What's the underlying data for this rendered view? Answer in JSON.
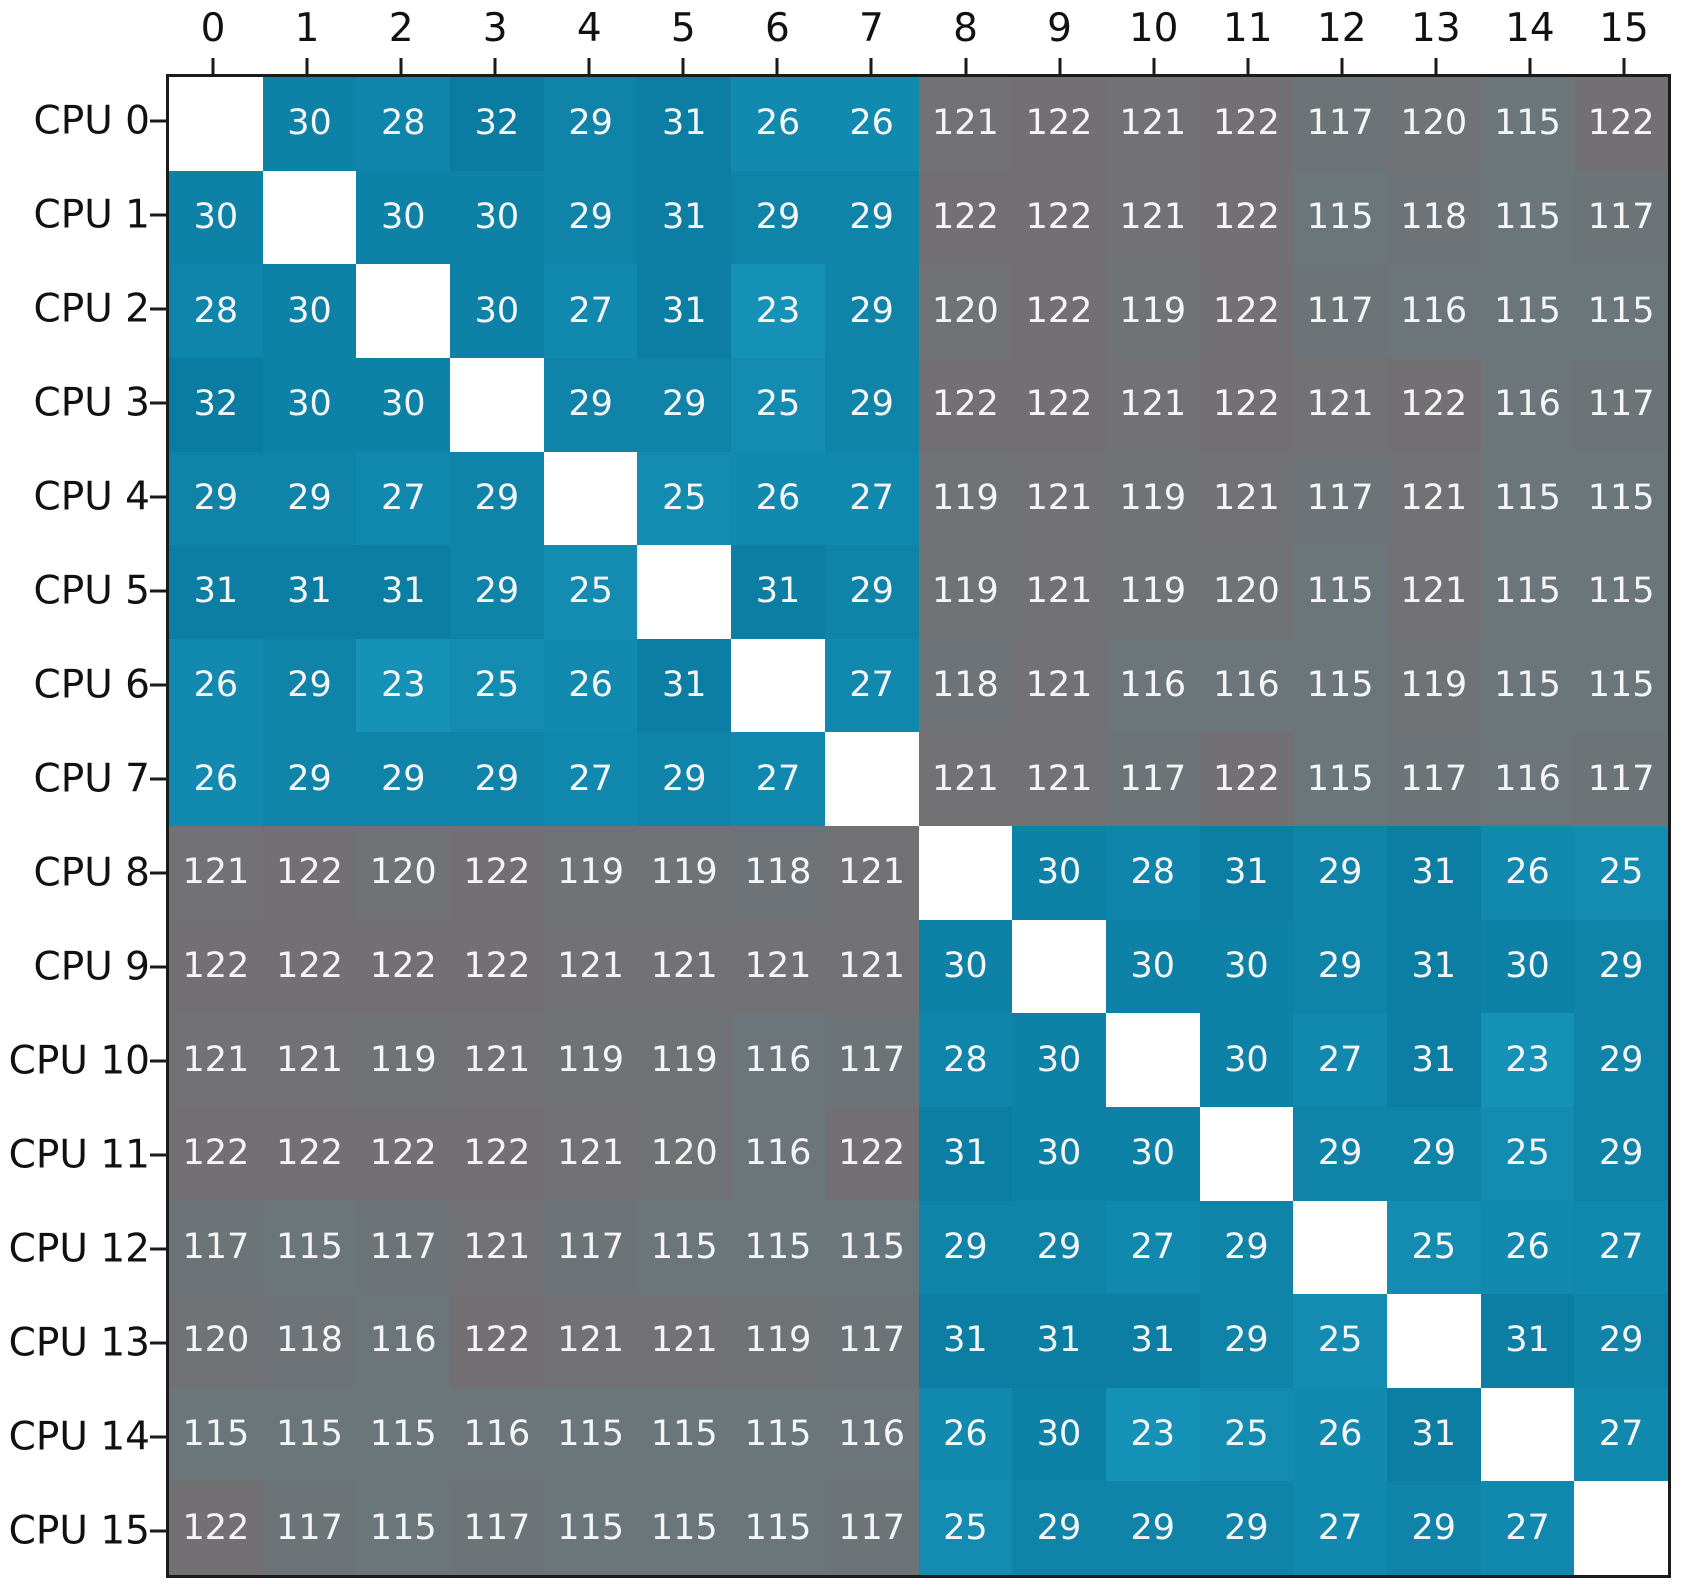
{
  "chart_data": {
    "type": "heatmap",
    "title": "",
    "xlabel": "",
    "ylabel": "",
    "x_tick_labels": [
      "0",
      "1",
      "2",
      "3",
      "4",
      "5",
      "6",
      "7",
      "8",
      "9",
      "10",
      "11",
      "12",
      "13",
      "14",
      "15"
    ],
    "y_tick_labels": [
      "CPU 0",
      "CPU 1",
      "CPU 2",
      "CPU 3",
      "CPU 4",
      "CPU 5",
      "CPU 6",
      "CPU 7",
      "CPU 8",
      "CPU 9",
      "CPU 10",
      "CPU 11",
      "CPU 12",
      "CPU 13",
      "CPU 14",
      "CPU 15"
    ],
    "values": [
      [
        null,
        30,
        28,
        32,
        29,
        31,
        26,
        26,
        121,
        122,
        121,
        122,
        117,
        120,
        115,
        122
      ],
      [
        30,
        null,
        30,
        30,
        29,
        31,
        29,
        29,
        122,
        122,
        121,
        122,
        115,
        118,
        115,
        117
      ],
      [
        28,
        30,
        null,
        30,
        27,
        31,
        23,
        29,
        120,
        122,
        119,
        122,
        117,
        116,
        115,
        115
      ],
      [
        32,
        30,
        30,
        null,
        29,
        29,
        25,
        29,
        122,
        122,
        121,
        122,
        121,
        122,
        116,
        117
      ],
      [
        29,
        29,
        27,
        29,
        null,
        25,
        26,
        27,
        119,
        121,
        119,
        121,
        117,
        121,
        115,
        115
      ],
      [
        31,
        31,
        31,
        29,
        25,
        null,
        31,
        29,
        119,
        121,
        119,
        120,
        115,
        121,
        115,
        115
      ],
      [
        26,
        29,
        23,
        25,
        26,
        31,
        null,
        27,
        118,
        121,
        116,
        116,
        115,
        119,
        115,
        115
      ],
      [
        26,
        29,
        29,
        29,
        27,
        29,
        27,
        null,
        121,
        121,
        117,
        122,
        115,
        117,
        116,
        117
      ],
      [
        121,
        122,
        120,
        122,
        119,
        119,
        118,
        121,
        null,
        30,
        28,
        31,
        29,
        31,
        26,
        25
      ],
      [
        122,
        122,
        122,
        122,
        121,
        121,
        121,
        121,
        30,
        null,
        30,
        30,
        29,
        31,
        30,
        29
      ],
      [
        121,
        121,
        119,
        121,
        119,
        119,
        116,
        117,
        28,
        30,
        null,
        30,
        27,
        31,
        23,
        29
      ],
      [
        122,
        122,
        122,
        122,
        121,
        120,
        116,
        122,
        31,
        30,
        30,
        null,
        29,
        29,
        25,
        29
      ],
      [
        117,
        115,
        117,
        121,
        117,
        115,
        115,
        115,
        29,
        29,
        27,
        29,
        null,
        25,
        26,
        27
      ],
      [
        120,
        118,
        116,
        122,
        121,
        121,
        119,
        117,
        31,
        31,
        31,
        29,
        25,
        null,
        31,
        29
      ],
      [
        115,
        115,
        115,
        116,
        115,
        115,
        115,
        116,
        26,
        30,
        23,
        25,
        26,
        31,
        null,
        27
      ],
      [
        122,
        117,
        115,
        117,
        115,
        115,
        115,
        117,
        25,
        29,
        29,
        29,
        27,
        29,
        27,
        null
      ]
    ],
    "value_ranges": {
      "intra_group": [
        23,
        32
      ],
      "inter_group": [
        115,
        122
      ]
    },
    "legend": "none",
    "grid": false,
    "colors": {
      "diagonal": "#ffffff",
      "cell_text": "#f5f5f5",
      "axis_text": "#111111",
      "frame": "#1a1a1a",
      "group_threshold": 70,
      "intra": {
        "min": 23,
        "max": 32,
        "low": "#1691b7",
        "high": "#0b7ca1"
      },
      "inter": {
        "min": 115,
        "max": 122,
        "low": "#6b767a",
        "high": "#737073"
      }
    }
  }
}
